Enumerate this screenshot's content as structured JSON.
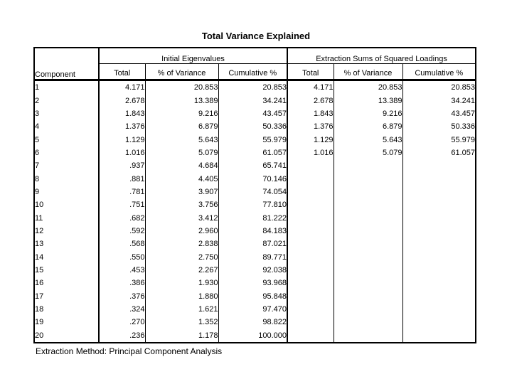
{
  "title": "Total Variance Explained",
  "footnote": "Extraction Method: Principal Component Analysis",
  "colors": {
    "background": "#ffffff",
    "text": "#000000",
    "border": "#000000"
  },
  "table": {
    "corner_label": "Component",
    "group1_label": "Initial Eigenvalues",
    "group2_label": "Extraction Sums of Squared Loadings",
    "sub_headers": [
      "Total",
      "% of Variance",
      "Cumulative %",
      "Total",
      "% of Variance",
      "Cumulative %"
    ]
  },
  "chart_data": {
    "type": "table",
    "title": "Total Variance Explained",
    "column_groups": [
      "",
      "Initial Eigenvalues",
      "Extraction Sums of Squared Loadings"
    ],
    "columns": [
      "Component",
      "Total",
      "% of Variance",
      "Cumulative %",
      "Total",
      "% of Variance",
      "Cumulative %"
    ],
    "rows": [
      [
        "1",
        "4.171",
        "20.853",
        "20.853",
        "4.171",
        "20.853",
        "20.853"
      ],
      [
        "2",
        "2.678",
        "13.389",
        "34.241",
        "2.678",
        "13.389",
        "34.241"
      ],
      [
        "3",
        "1.843",
        "9.216",
        "43.457",
        "1.843",
        "9.216",
        "43.457"
      ],
      [
        "4",
        "1.376",
        "6.879",
        "50.336",
        "1.376",
        "6.879",
        "50.336"
      ],
      [
        "5",
        "1.129",
        "5.643",
        "55.979",
        "1.129",
        "5.643",
        "55.979"
      ],
      [
        "6",
        "1.016",
        "5.079",
        "61.057",
        "1.016",
        "5.079",
        "61.057"
      ],
      [
        "7",
        ".937",
        "4.684",
        "65.741",
        "",
        "",
        ""
      ],
      [
        "8",
        ".881",
        "4.405",
        "70.146",
        "",
        "",
        ""
      ],
      [
        "9",
        ".781",
        "3.907",
        "74.054",
        "",
        "",
        ""
      ],
      [
        "10",
        ".751",
        "3.756",
        "77.810",
        "",
        "",
        ""
      ],
      [
        "11",
        ".682",
        "3.412",
        "81.222",
        "",
        "",
        ""
      ],
      [
        "12",
        ".592",
        "2.960",
        "84.183",
        "",
        "",
        ""
      ],
      [
        "13",
        ".568",
        "2.838",
        "87.021",
        "",
        "",
        ""
      ],
      [
        "14",
        ".550",
        "2.750",
        "89.771",
        "",
        "",
        ""
      ],
      [
        "15",
        ".453",
        "2.267",
        "92.038",
        "",
        "",
        ""
      ],
      [
        "16",
        ".386",
        "1.930",
        "93.968",
        "",
        "",
        ""
      ],
      [
        "17",
        ".376",
        "1.880",
        "95.848",
        "",
        "",
        ""
      ],
      [
        "18",
        ".324",
        "1.621",
        "97.470",
        "",
        "",
        ""
      ],
      [
        "19",
        ".270",
        "1.352",
        "98.822",
        "",
        "",
        ""
      ],
      [
        "20",
        ".236",
        "1.178",
        "100.000",
        "",
        "",
        ""
      ]
    ],
    "footnote": "Extraction Method: Principal Component Analysis"
  }
}
